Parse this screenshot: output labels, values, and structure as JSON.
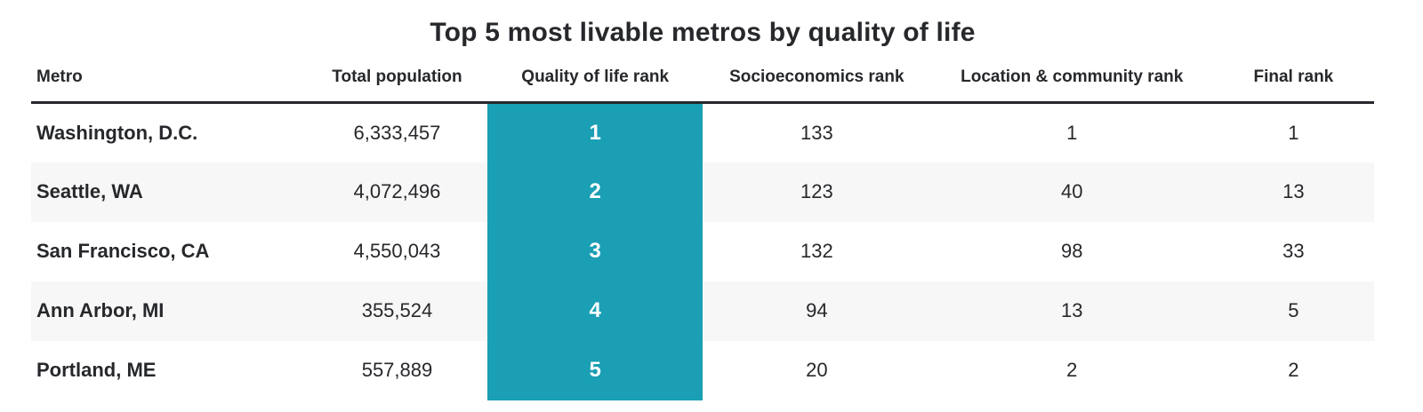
{
  "title": "Top 5 most livable metros by quality of life",
  "colors": {
    "accent_teal": "#1a9fb4",
    "header_rule": "#26282b",
    "row_stripe": "#f7f7f7",
    "text": "#26282b",
    "highlight_text": "#ffffff",
    "background": "#ffffff"
  },
  "chart_data": {
    "type": "table",
    "title": "Top 5 most livable metros by quality of life",
    "columns": [
      "Metro",
      "Total population",
      "Quality of life rank",
      "Socioeconomics rank",
      "Location & community rank",
      "Final rank"
    ],
    "column_keys": [
      "metro",
      "total-population",
      "quality-of-life-rank",
      "socioeconomics-rank",
      "location-community-rank",
      "final-rank"
    ],
    "highlighted_column": "Quality of life rank",
    "highlighted_column_index": 2,
    "zebra_striped_rows": [
      1,
      3
    ],
    "rows": [
      [
        "Washington, D.C.",
        "6,333,457",
        "1",
        "133",
        "1",
        "1"
      ],
      [
        "Seattle, WA",
        "4,072,496",
        "2",
        "123",
        "40",
        "13"
      ],
      [
        "San Francisco, CA",
        "4,550,043",
        "3",
        "132",
        "98",
        "33"
      ],
      [
        "Ann Arbor, MI",
        "355,524",
        "4",
        "94",
        "13",
        "5"
      ],
      [
        "Portland, ME",
        "557,889",
        "5",
        "20",
        "2",
        "2"
      ]
    ]
  }
}
